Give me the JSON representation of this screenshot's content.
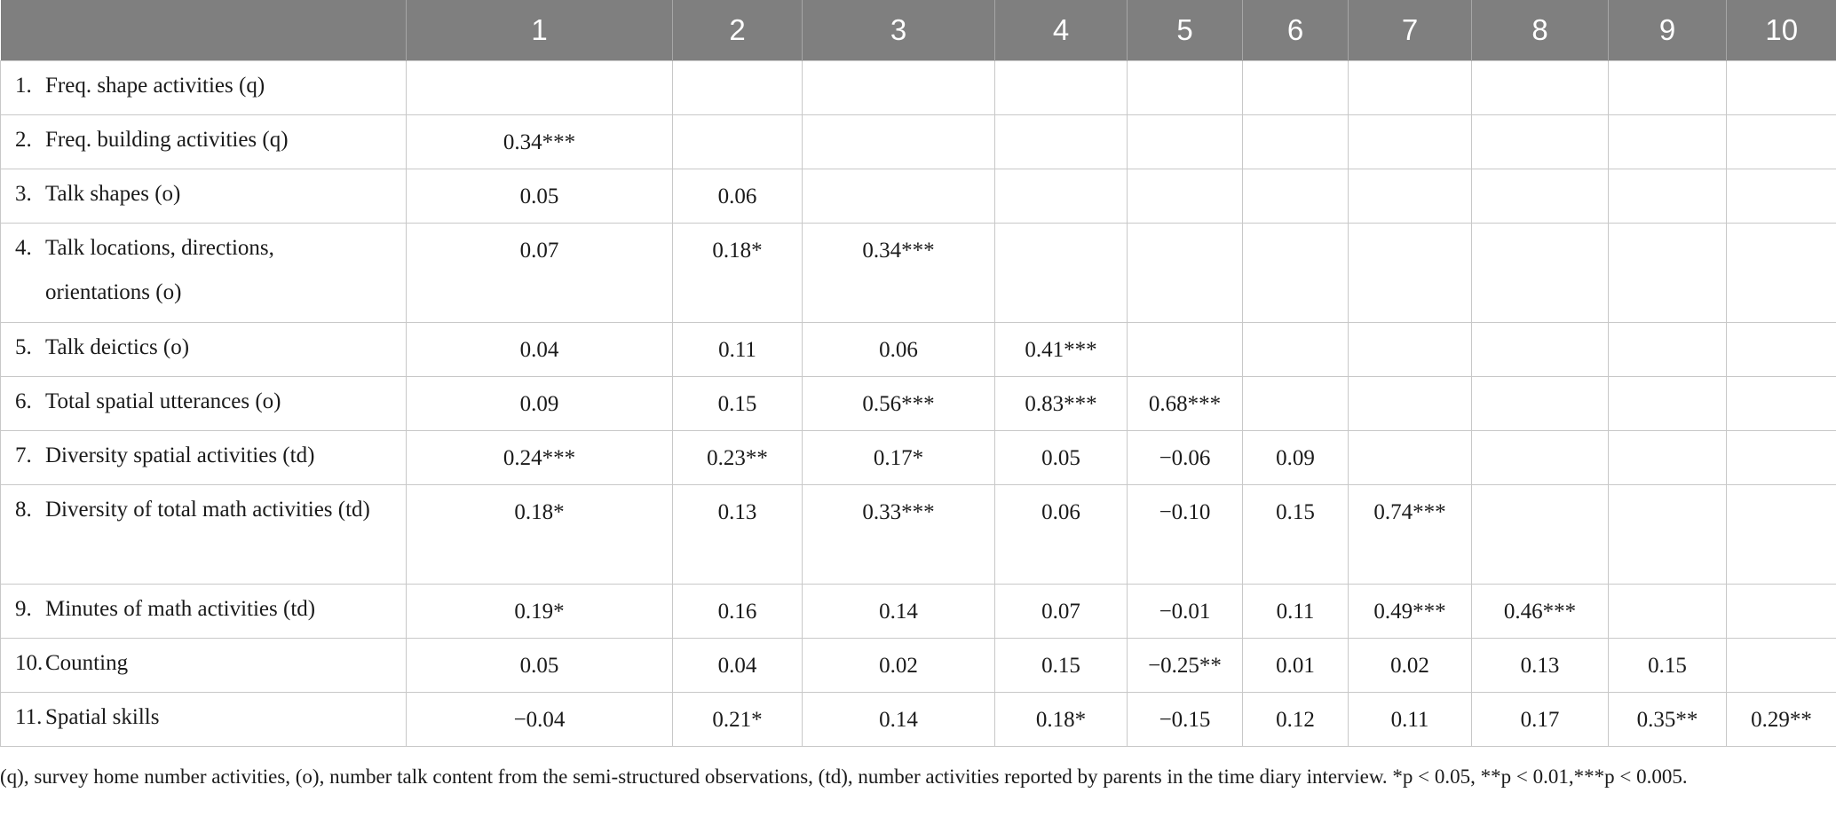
{
  "table": {
    "header": [
      "",
      "1",
      "2",
      "3",
      "4",
      "5",
      "6",
      "7",
      "8",
      "9",
      "10"
    ],
    "rows": [
      {
        "num": "1.",
        "label": "Freq. shape activities (q)",
        "cells": [
          "",
          "",
          "",
          "",
          "",
          "",
          "",
          "",
          "",
          ""
        ]
      },
      {
        "num": "2.",
        "label": "Freq. building activities (q)",
        "cells": [
          "0.34***",
          "",
          "",
          "",
          "",
          "",
          "",
          "",
          "",
          ""
        ]
      },
      {
        "num": "3.",
        "label": "Talk shapes (o)",
        "cells": [
          "0.05",
          "0.06",
          "",
          "",
          "",
          "",
          "",
          "",
          "",
          ""
        ]
      },
      {
        "num": "4.",
        "label": "Talk locations, directions, orientations (o)",
        "cells": [
          "0.07",
          "0.18*",
          "0.34***",
          "",
          "",
          "",
          "",
          "",
          "",
          ""
        ]
      },
      {
        "num": "5.",
        "label": "Talk deictics (o)",
        "cells": [
          "0.04",
          "0.11",
          "0.06",
          "0.41***",
          "",
          "",
          "",
          "",
          "",
          ""
        ]
      },
      {
        "num": "6.",
        "label": "Total spatial utterances (o)",
        "cells": [
          "0.09",
          "0.15",
          "0.56***",
          "0.83***",
          "0.68***",
          "",
          "",
          "",
          "",
          ""
        ]
      },
      {
        "num": "7.",
        "label": "Diversity spatial activities (td)",
        "cells": [
          "0.24***",
          "0.23**",
          "0.17*",
          "0.05",
          "−0.06",
          "0.09",
          "",
          "",
          "",
          ""
        ]
      },
      {
        "num": "8.",
        "label": "Diversity of total math activities (td)",
        "cells": [
          "0.18*",
          "0.13",
          "0.33***",
          "0.06",
          "−0.10",
          "0.15",
          "0.74***",
          "",
          "",
          ""
        ]
      },
      {
        "num": "9.",
        "label": "Minutes of math activities (td)",
        "cells": [
          "0.19*",
          "0.16",
          "0.14",
          "0.07",
          "−0.01",
          "0.11",
          "0.49***",
          "0.46***",
          "",
          ""
        ]
      },
      {
        "num": "10.",
        "label": "Counting",
        "cells": [
          "0.05",
          "0.04",
          "0.02",
          "0.15",
          "−0.25**",
          "0.01",
          "0.02",
          "0.13",
          "0.15",
          ""
        ]
      },
      {
        "num": "11.",
        "label": "Spatial skills",
        "cells": [
          "−0.04",
          "0.21*",
          "0.14",
          "0.18*",
          "−0.15",
          "0.12",
          "0.11",
          "0.17",
          "0.35**",
          "0.29**"
        ]
      }
    ]
  },
  "footnote": "(q), survey home number activities, (o), number talk content from the semi-structured observations, (td), number activities reported by parents in the time diary interview. *p < 0.05, **p < 0.01,***p < 0.005."
}
